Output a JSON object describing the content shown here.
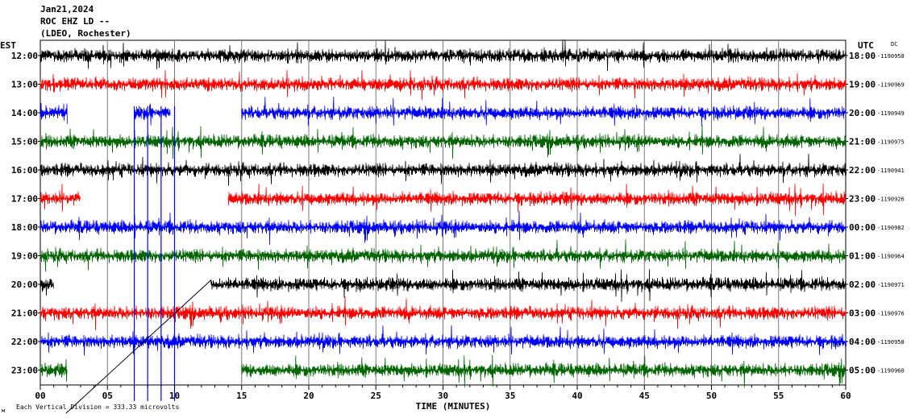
{
  "header": {
    "date": "Jan21,2024",
    "station": "ROC EHZ LD --",
    "network": "(LDEO, Rochester)"
  },
  "left_timezone": "EST",
  "right_timezone": "UTC",
  "dc_label": "DC",
  "footer": {
    "scale_note": "Each Vertical Division = 333.33 microvolts",
    "corner_glyph": "м"
  },
  "chart_data": {
    "type": "line",
    "title": "",
    "xlabel": "TIME (MINUTES)",
    "ylabel": "",
    "xlim": [
      0,
      60
    ],
    "x_ticks": [
      "00",
      "05",
      "10",
      "15",
      "20",
      "25",
      "30",
      "35",
      "40",
      "45",
      "50",
      "55",
      "60"
    ],
    "colors_cycle": [
      "#000000",
      "#ff0000",
      "#0000ff",
      "#006400"
    ],
    "grid": true,
    "rows": [
      {
        "left": "12:00",
        "right": "18:00",
        "dc": "-1190958",
        "color": "#000000",
        "segments": [
          [
            0,
            60
          ]
        ]
      },
      {
        "left": "13:00",
        "right": "19:00",
        "dc": "-1190969",
        "color": "#ff0000",
        "segments": [
          [
            0,
            60
          ]
        ]
      },
      {
        "left": "14:00",
        "right": "20:00",
        "dc": "-1190949",
        "color": "#0000ff",
        "segments": [
          [
            0,
            2
          ],
          [
            7,
            9.7
          ],
          [
            15,
            60
          ]
        ]
      },
      {
        "left": "15:00",
        "right": "21:00",
        "dc": "-1190975",
        "color": "#006400",
        "segments": [
          [
            0,
            60
          ]
        ]
      },
      {
        "left": "16:00",
        "right": "22:00",
        "dc": "-1190941",
        "color": "#000000",
        "segments": [
          [
            0,
            60
          ]
        ]
      },
      {
        "left": "17:00",
        "right": "23:00",
        "dc": "-1190926",
        "color": "#ff0000",
        "segments": [
          [
            0,
            3
          ],
          [
            14,
            60
          ]
        ]
      },
      {
        "left": "18:00",
        "right": "00:00",
        "dc": "-1190982",
        "color": "#0000ff",
        "segments": [
          [
            0,
            60
          ]
        ]
      },
      {
        "left": "19:00",
        "right": "01:00",
        "dc": "-1190964",
        "color": "#006400",
        "segments": [
          [
            0,
            60
          ]
        ]
      },
      {
        "left": "20:00",
        "right": "02:00",
        "dc": "-1190971",
        "color": "#000000",
        "segments": [
          [
            0,
            1
          ],
          [
            12.7,
            60
          ]
        ]
      },
      {
        "left": "21:00",
        "right": "03:00",
        "dc": "-1190976",
        "color": "#ff0000",
        "segments": [
          [
            0,
            60
          ]
        ]
      },
      {
        "left": "22:00",
        "right": "04:00",
        "dc": "-1190958",
        "color": "#0000ff",
        "segments": [
          [
            0,
            60
          ]
        ]
      },
      {
        "left": "23:00",
        "right": "05:00",
        "dc": "-1190960",
        "color": "#006400",
        "segments": [
          [
            0,
            2
          ],
          [
            15,
            60
          ]
        ]
      }
    ],
    "spikes": [
      {
        "minute": 7.0,
        "color": "#0000ff"
      },
      {
        "minute": 8.0,
        "color": "#0000ff"
      },
      {
        "minute": 9.0,
        "color": "#0000ff"
      },
      {
        "minute": 10.0,
        "color": "#0000ff"
      }
    ]
  }
}
